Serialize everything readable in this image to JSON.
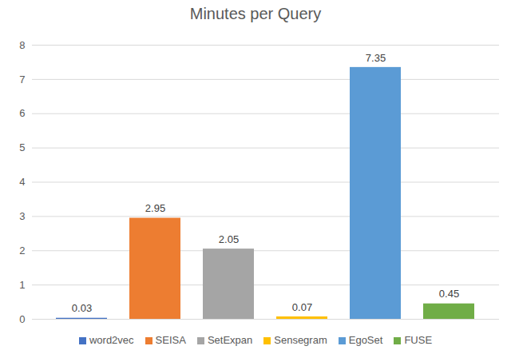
{
  "chart_data": {
    "type": "bar",
    "title": "Minutes per Query",
    "categories": [
      "word2vec",
      "SEISA",
      "SetExpan",
      "Sensegram",
      "EgoSet",
      "FUSE"
    ],
    "values": [
      0.03,
      2.95,
      2.05,
      0.07,
      7.35,
      0.45
    ],
    "colors": [
      "#4472c4",
      "#ed7d31",
      "#a5a5a5",
      "#ffc000",
      "#5b9bd5",
      "#70ad47"
    ],
    "ylim": [
      0,
      8
    ],
    "yticks": [
      0,
      1,
      2,
      3,
      4,
      5,
      6,
      7,
      8
    ],
    "grid": true,
    "data_labels": true,
    "legend": "bottom",
    "tick_labels": "y"
  }
}
